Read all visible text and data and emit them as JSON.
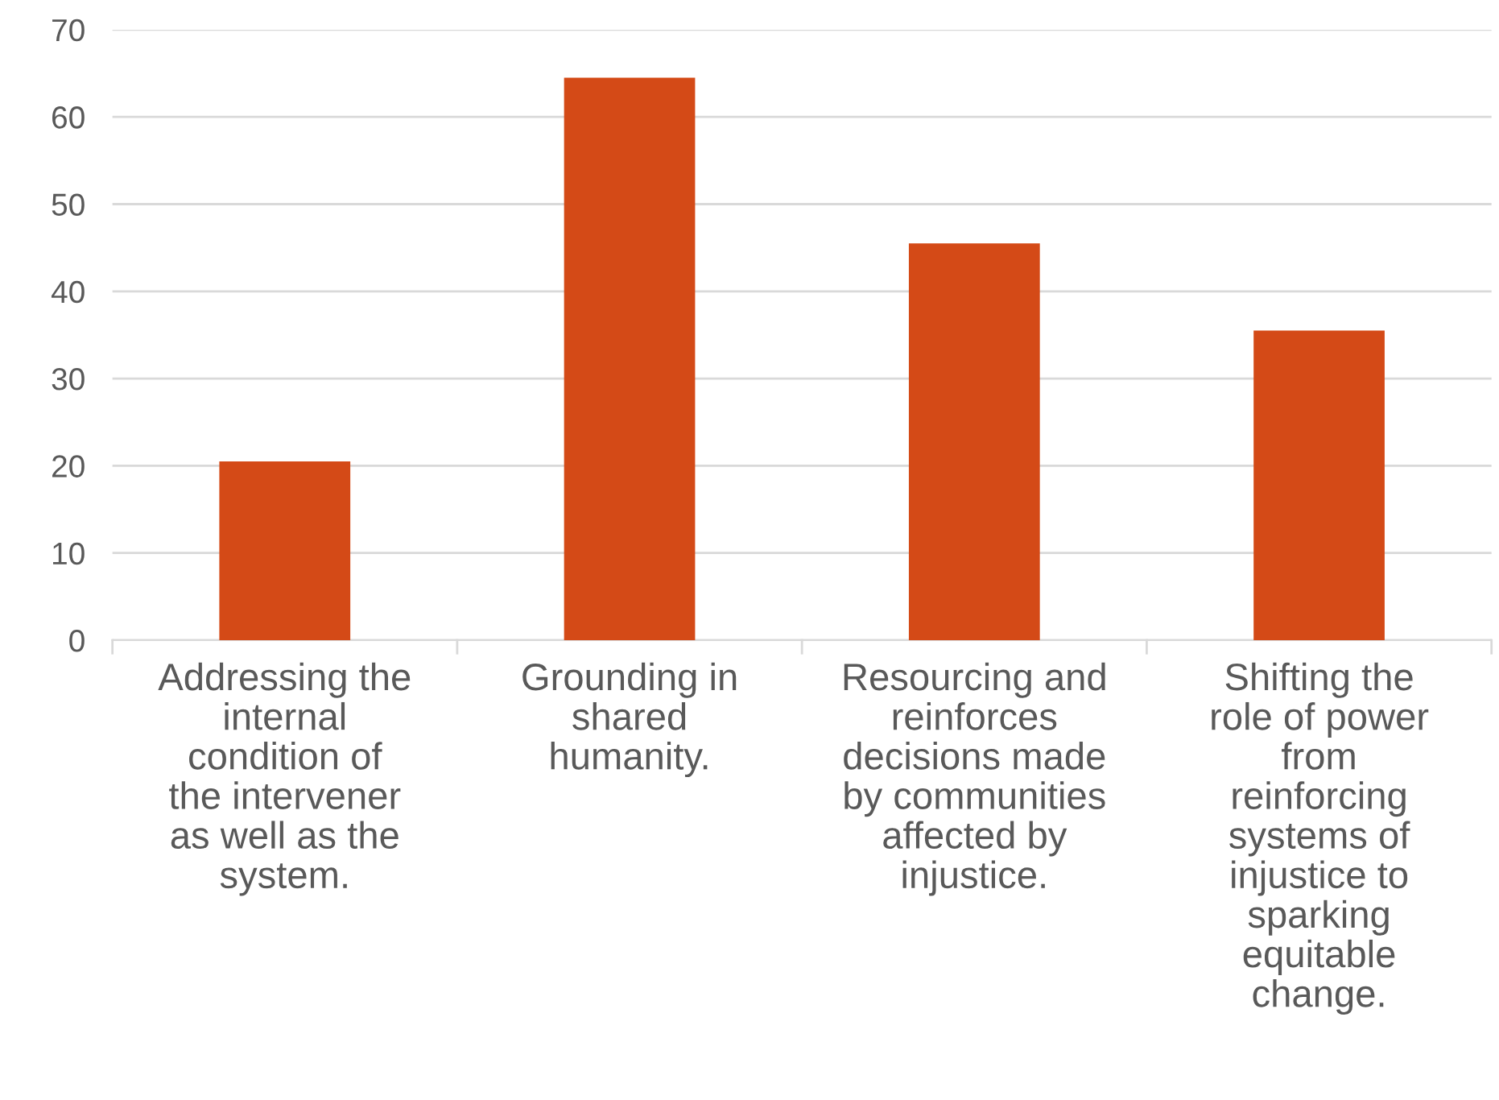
{
  "chart_data": {
    "type": "bar",
    "categories": [
      "Addressing the internal condition of the intervener as well as the system.",
      "Grounding in shared humanity.",
      "Resourcing and reinforces decisions made by communities affected by injustice.",
      "Shifting the role of power from reinforcing systems of injustice to sparking equitable change."
    ],
    "values": [
      20.5,
      64.5,
      45.5,
      35.5
    ],
    "color": "#d44a17",
    "ylim": [
      0,
      70
    ],
    "yticks": [
      0,
      10,
      20,
      30,
      40,
      50,
      60,
      70
    ],
    "grid": "y",
    "legend": false
  }
}
